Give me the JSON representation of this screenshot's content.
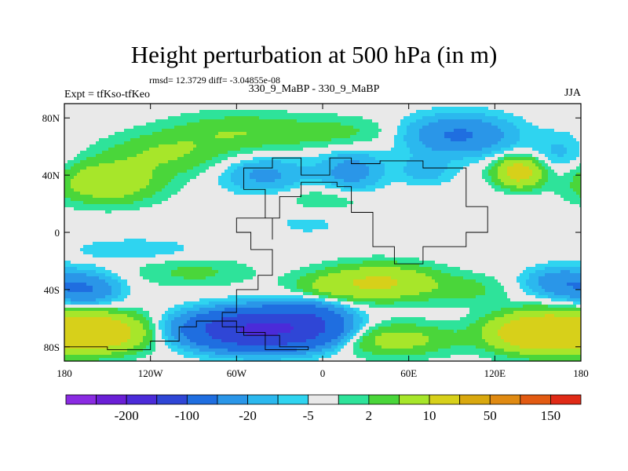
{
  "chart_data": {
    "type": "heatmap",
    "title": "Height perturbation at 500 hPa (in m)",
    "stats_line": "rmsd= 12.3729 diff= -3.04855e-08",
    "left_label": "Expt = tfKso-tfKeo",
    "center_label": "330_9_MaBP - 330_9_MaBP",
    "right_label": "JJA",
    "xlim": [
      -180,
      180
    ],
    "ylim": [
      -90,
      90
    ],
    "x_ticks": [
      {
        "value": -180,
        "label": "180"
      },
      {
        "value": -120,
        "label": "120W"
      },
      {
        "value": -60,
        "label": "60W"
      },
      {
        "value": 0,
        "label": "0"
      },
      {
        "value": 60,
        "label": "60E"
      },
      {
        "value": 120,
        "label": "120E"
      },
      {
        "value": 180,
        "label": "180"
      }
    ],
    "y_ticks": [
      {
        "value": 80,
        "label": "80N"
      },
      {
        "value": 40,
        "label": "40N"
      },
      {
        "value": 0,
        "label": "0"
      },
      {
        "value": -40,
        "label": "40S"
      },
      {
        "value": -80,
        "label": "80S"
      }
    ],
    "colorbar": {
      "colors": [
        "#8a2be2",
        "#6a1fd6",
        "#4b2bd9",
        "#2f46d6",
        "#1f6ee0",
        "#2a96e8",
        "#2bb8ee",
        "#2fd4f0",
        "#e9e9e9",
        "#2ee39a",
        "#4ad63a",
        "#a7e62a",
        "#d7d01a",
        "#d9a80e",
        "#e08a12",
        "#e25a12",
        "#e02a16"
      ],
      "labels": [
        {
          "after_index": 1,
          "text": "-200"
        },
        {
          "after_index": 3,
          "text": "-100"
        },
        {
          "after_index": 5,
          "text": "-20"
        },
        {
          "after_index": 7,
          "text": "-5"
        },
        {
          "after_index": 9,
          "text": "2"
        },
        {
          "after_index": 11,
          "text": "10"
        },
        {
          "after_index": 13,
          "text": "50"
        },
        {
          "after_index": 15,
          "text": "150"
        }
      ]
    },
    "anomalies": [
      {
        "lon": -150,
        "lat": 35,
        "amp": 18,
        "rx": 34,
        "ry": 14
      },
      {
        "lon": -110,
        "lat": 55,
        "amp": 10,
        "rx": 40,
        "ry": 14
      },
      {
        "lon": -60,
        "lat": 70,
        "amp": 9,
        "rx": 45,
        "ry": 13
      },
      {
        "lon": 10,
        "lat": 70,
        "amp": 6,
        "rx": 45,
        "ry": 11
      },
      {
        "lon": -40,
        "lat": 40,
        "amp": -12,
        "rx": 28,
        "ry": 12
      },
      {
        "lon": 20,
        "lat": 42,
        "amp": -14,
        "rx": 22,
        "ry": 14
      },
      {
        "lon": 95,
        "lat": 68,
        "amp": -22,
        "rx": 35,
        "ry": 13
      },
      {
        "lon": 72,
        "lat": 44,
        "amp": -8,
        "rx": 18,
        "ry": 10
      },
      {
        "lon": 137,
        "lat": 42,
        "amp": 28,
        "rx": 16,
        "ry": 10
      },
      {
        "lon": 165,
        "lat": 55,
        "amp": -6,
        "rx": 18,
        "ry": 14
      },
      {
        "lon": 5,
        "lat": 25,
        "amp": 5,
        "rx": 35,
        "ry": 10
      },
      {
        "lon": -130,
        "lat": -12,
        "amp": -5,
        "rx": 40,
        "ry": 7
      },
      {
        "lon": -10,
        "lat": 6,
        "amp": -3,
        "rx": 25,
        "ry": 8
      },
      {
        "lon": -165,
        "lat": -40,
        "amp": -20,
        "rx": 22,
        "ry": 11
      },
      {
        "lon": -90,
        "lat": -28,
        "amp": 6,
        "rx": 40,
        "ry": 10
      },
      {
        "lon": 40,
        "lat": -35,
        "amp": 22,
        "rx": 38,
        "ry": 12
      },
      {
        "lon": 0,
        "lat": -40,
        "amp": 8,
        "rx": 25,
        "ry": 10
      },
      {
        "lon": -45,
        "lat": -68,
        "amp": -110,
        "rx": 42,
        "ry": 12
      },
      {
        "lon": -10,
        "lat": -62,
        "amp": -30,
        "rx": 25,
        "ry": 14
      },
      {
        "lon": -160,
        "lat": -70,
        "amp": 40,
        "rx": 34,
        "ry": 13
      },
      {
        "lon": 50,
        "lat": -75,
        "amp": 14,
        "rx": 40,
        "ry": 11
      },
      {
        "lon": 150,
        "lat": -70,
        "amp": 40,
        "rx": 32,
        "ry": 13
      },
      {
        "lon": 165,
        "lat": -35,
        "amp": -16,
        "rx": 22,
        "ry": 10
      },
      {
        "lon": 100,
        "lat": -40,
        "amp": 6,
        "rx": 28,
        "ry": 10
      }
    ],
    "coast_outline_lonlat": [
      [
        -180,
        -80
      ],
      [
        -150,
        -82
      ],
      [
        -120,
        -76
      ],
      [
        -100,
        -66
      ],
      [
        -88,
        -62
      ],
      [
        -60,
        -70
      ],
      [
        -40,
        -82
      ],
      [
        -10,
        -80
      ],
      [
        -30,
        -72
      ],
      [
        -55,
        -66
      ],
      [
        -70,
        -56
      ],
      [
        -60,
        -40
      ],
      [
        -45,
        -30
      ],
      [
        -35,
        -12
      ],
      [
        -50,
        0
      ],
      [
        -60,
        10
      ],
      [
        -30,
        25
      ],
      [
        -15,
        35
      ],
      [
        10,
        32
      ],
      [
        20,
        14
      ],
      [
        35,
        -10
      ],
      [
        50,
        -22
      ],
      [
        70,
        -10
      ],
      [
        100,
        0
      ],
      [
        115,
        18
      ],
      [
        100,
        45
      ],
      [
        70,
        50
      ],
      [
        40,
        48
      ],
      [
        20,
        52
      ],
      [
        5,
        40
      ],
      [
        -15,
        52
      ],
      [
        -35,
        45
      ],
      [
        -55,
        30
      ],
      [
        -40,
        10
      ],
      [
        -35,
        -5
      ]
    ]
  }
}
